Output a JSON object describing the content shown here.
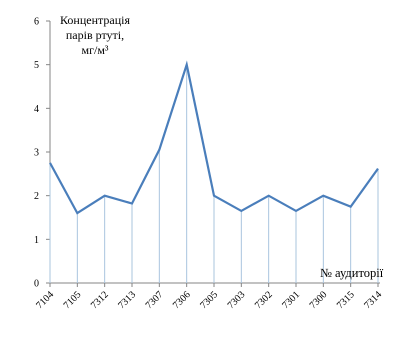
{
  "chart_data": {
    "type": "line",
    "categories": [
      "7104",
      "7105",
      "7312",
      "7313",
      "7307",
      "7306",
      "7305",
      "7303",
      "7302",
      "7301",
      "7300",
      "7315",
      "7314"
    ],
    "values": [
      2.75,
      1.6,
      2.0,
      1.82,
      3.05,
      5.0,
      2.0,
      1.65,
      2.0,
      1.65,
      2.0,
      1.75,
      2.62
    ],
    "ylabel": [
      "Концентрація",
      "парів ртуті,",
      "мг/м³"
    ],
    "xlabel": "№ аудиторії",
    "ylim": [
      0,
      6
    ],
    "yticks": [
      "0",
      "1",
      "2",
      "3",
      "4",
      "5",
      "6"
    ],
    "drop_lines": true,
    "grid": false,
    "line_color": "#4a7ebb",
    "drop_line_color": "#a9c4de",
    "axis_color": "#868686"
  }
}
